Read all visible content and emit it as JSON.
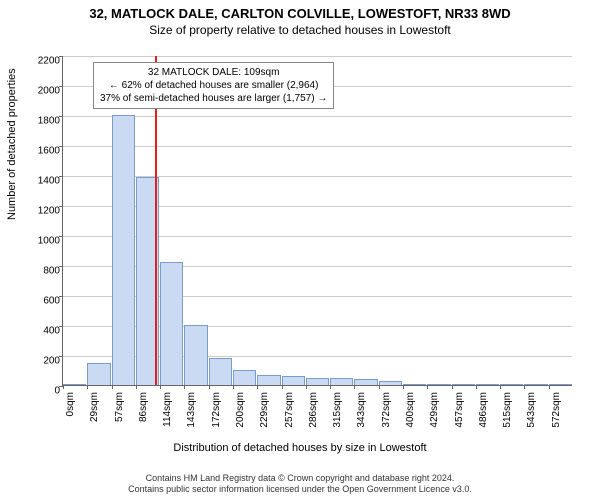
{
  "title_line1": "32, MATLOCK DALE, CARLTON COLVILLE, LOWESTOFT, NR33 8WD",
  "title_line2": "Size of property relative to detached houses in Lowestoft",
  "ylabel": "Number of detached properties",
  "xlabel": "Distribution of detached houses by size in Lowestoft",
  "footer_line1": "Contains HM Land Registry data © Crown copyright and database right 2024.",
  "footer_line2": "Contains public sector information licensed under the Open Government Licence v3.0.",
  "chart": {
    "ylim": [
      0,
      2200
    ],
    "ytick_step": 200,
    "xticks": [
      "0sqm",
      "29sqm",
      "57sqm",
      "86sqm",
      "114sqm",
      "143sqm",
      "172sqm",
      "200sqm",
      "229sqm",
      "257sqm",
      "286sqm",
      "315sqm",
      "343sqm",
      "372sqm",
      "400sqm",
      "429sqm",
      "457sqm",
      "486sqm",
      "515sqm",
      "543sqm",
      "572sqm"
    ],
    "bar_color": "#c9daf2",
    "bar_border": "#7a9cc6",
    "grid_color": "#cccccc",
    "values": [
      0,
      150,
      1800,
      1390,
      820,
      400,
      180,
      100,
      70,
      60,
      50,
      50,
      40,
      30,
      10,
      5,
      5,
      5,
      0,
      0,
      0
    ],
    "marker_x_index": 3.8,
    "marker_color": "#e02020"
  },
  "annotation": {
    "line1": "32 MATLOCK DALE: 109sqm",
    "line2": "← 62% of detached houses are smaller (2,964)",
    "line3": "37% of semi-detached houses are larger (1,757) →"
  }
}
